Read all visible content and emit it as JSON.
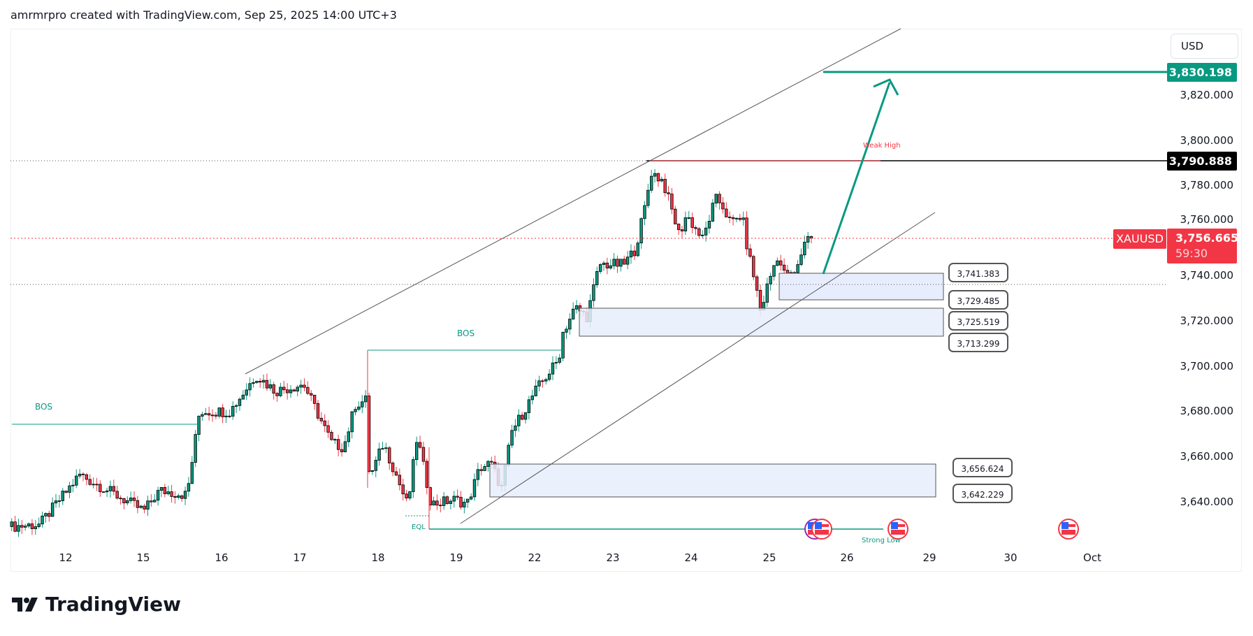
{
  "header": {
    "attribution": "amrmrpro created with TradingView.com, Sep 25, 2025 14:00 UTC+3"
  },
  "branding": {
    "logo_text": "TradingView"
  },
  "colors": {
    "up": "#089981",
    "down": "#f23645",
    "accent_green": "#089981",
    "zone_fill": "#e8edfd",
    "current_price": "#f23645"
  },
  "price_axis": {
    "currency": "USD",
    "ticks": [
      "3,820.000",
      "3,800.000",
      "3,780.000",
      "3,760.000",
      "3,740.000",
      "3,720.000",
      "3,700.000",
      "3,680.000",
      "3,660.000",
      "3,640.000"
    ]
  },
  "time_axis": {
    "ticks": [
      "12",
      "15",
      "16",
      "17",
      "18",
      "19",
      "22",
      "23",
      "24",
      "25",
      "26",
      "29",
      "30",
      "Oct"
    ]
  },
  "tags": {
    "target": "3,830.198",
    "high": "3,790.888",
    "symbol": "XAUUSD",
    "last_price": "3,756.665",
    "countdown": "59:30"
  },
  "zones": [
    {
      "top": "3,741.383",
      "bottom": "3,729.485"
    },
    {
      "top": "3,725.519",
      "bottom": "3,713.299"
    },
    {
      "top": "3,656.624",
      "bottom": "3,642.229"
    }
  ],
  "annotations": {
    "bos1": "BOS",
    "bos2": "BOS",
    "weak_high": "Weak High",
    "eql": "EQL",
    "strong_low": "Strong Low"
  },
  "events": [
    {
      "icon": "us-flag-icon"
    },
    {
      "icon": "us-flag-icon"
    },
    {
      "icon": "us-flag-icon"
    },
    {
      "icon": "us-flag-icon"
    }
  ],
  "chart_data": {
    "type": "candlestick",
    "symbol": "XAUUSD",
    "timeframe": "1h",
    "ylim": [
      3625,
      3845
    ],
    "anchors_day_index_price": [
      [
        -0.69,
        3629
      ],
      [
        -0.33,
        3630
      ],
      [
        0.18,
        3652
      ],
      [
        1.0,
        3636
      ],
      [
        1.2,
        3645
      ],
      [
        1.55,
        3643
      ],
      [
        1.71,
        3680
      ],
      [
        2.1,
        3680
      ],
      [
        2.43,
        3696
      ],
      [
        2.68,
        3689
      ],
      [
        3.04,
        3692
      ],
      [
        3.4,
        3666
      ],
      [
        3.55,
        3664
      ],
      [
        3.7,
        3683
      ],
      [
        3.84,
        3685
      ],
      [
        3.88,
        3650
      ],
      [
        4.06,
        3666
      ],
      [
        4.21,
        3653
      ],
      [
        4.37,
        3638
      ],
      [
        4.49,
        3669
      ],
      [
        4.67,
        3639
      ],
      [
        4.98,
        3641
      ],
      [
        5.13,
        3639
      ],
      [
        5.29,
        3655
      ],
      [
        5.43,
        3657
      ],
      [
        5.57,
        3646
      ],
      [
        5.7,
        3671
      ],
      [
        6.0,
        3689
      ],
      [
        6.3,
        3703
      ],
      [
        6.34,
        3714
      ],
      [
        6.51,
        3726
      ],
      [
        6.66,
        3722
      ],
      [
        6.82,
        3745
      ],
      [
        7.13,
        3745
      ],
      [
        7.28,
        3752
      ],
      [
        7.41,
        3772
      ],
      [
        7.48,
        3786
      ],
      [
        7.63,
        3782
      ],
      [
        7.84,
        3758
      ],
      [
        7.93,
        3767
      ],
      [
        8.14,
        3756
      ],
      [
        8.3,
        3774
      ],
      [
        8.38,
        3772
      ],
      [
        8.5,
        3763
      ],
      [
        8.64,
        3767
      ],
      [
        8.71,
        3752
      ],
      [
        8.81,
        3737
      ],
      [
        8.88,
        3724
      ],
      [
        8.96,
        3735
      ],
      [
        9.09,
        3749
      ],
      [
        9.21,
        3738
      ],
      [
        9.34,
        3742
      ],
      [
        9.45,
        3757
      ],
      [
        9.55,
        3756.665
      ]
    ]
  }
}
